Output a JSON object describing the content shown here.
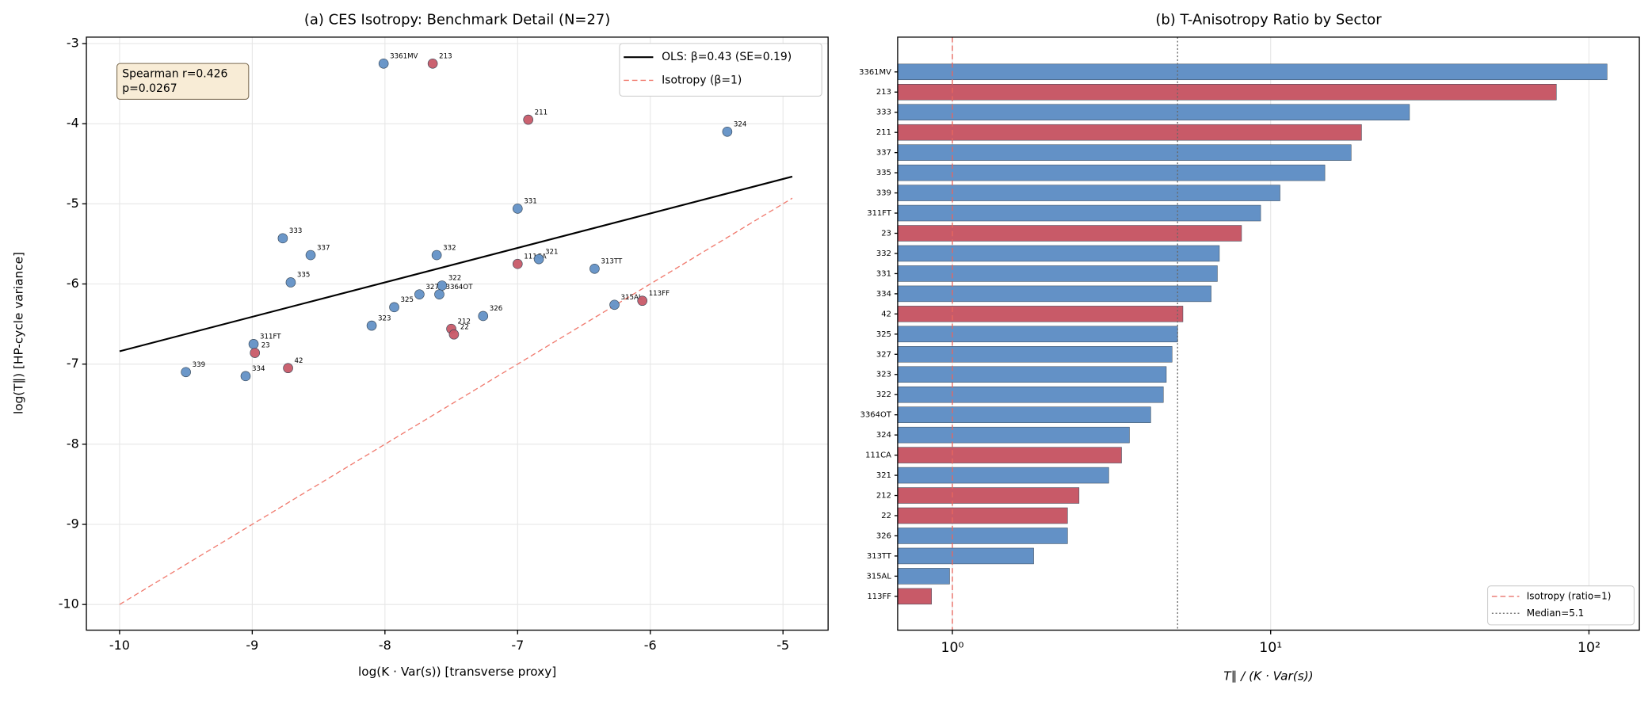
{
  "chart_data": [
    {
      "type": "scatter",
      "title": "(a) CES Isotropy: Benchmark Detail (N=27)",
      "x_label": "log(K · Var(s))  [transverse proxy]",
      "y_label": "log(T∥)  [HP-cycle variance]",
      "labels": [
        "3361MV",
        "213",
        "211",
        "324",
        "331",
        "333",
        "337",
        "332",
        "111CA",
        "321",
        "313TT",
        "335",
        "322",
        "327",
        "3364OT",
        "325",
        "315AL",
        "113FF",
        "326",
        "323",
        "212",
        "22",
        "311FT",
        "23",
        "42",
        "339",
        "334"
      ],
      "x": [
        -8.01,
        -7.64,
        -6.92,
        -5.42,
        -7.0,
        -8.77,
        -8.56,
        -7.61,
        -7.0,
        -6.84,
        -6.42,
        -8.71,
        -7.57,
        -7.74,
        -7.59,
        -7.93,
        -6.27,
        -6.06,
        -7.26,
        -8.1,
        -7.5,
        -7.48,
        -8.99,
        -8.98,
        -8.73,
        -9.5,
        -9.05
      ],
      "values": [
        -3.25,
        -3.25,
        -3.95,
        -4.1,
        -5.06,
        -5.43,
        -5.64,
        -5.64,
        -5.75,
        -5.69,
        -5.81,
        -5.98,
        -6.02,
        -6.13,
        -6.13,
        -6.29,
        -6.26,
        -6.21,
        -6.4,
        -6.52,
        -6.56,
        -6.63,
        -6.75,
        -6.86,
        -7.05,
        -7.1,
        -7.15
      ],
      "colors": [
        "#6391c6",
        "#c85a68",
        "#c85a68",
        "#6391c6",
        "#6391c6",
        "#6391c6",
        "#6391c6",
        "#6391c6",
        "#c85a68",
        "#6391c6",
        "#6391c6",
        "#6391c6",
        "#6391c6",
        "#6391c6",
        "#6391c6",
        "#6391c6",
        "#6391c6",
        "#c85a68",
        "#6391c6",
        "#6391c6",
        "#c85a68",
        "#c85a68",
        "#6391c6",
        "#c85a68",
        "#c85a68",
        "#6391c6",
        "#6391c6"
      ],
      "lines": [
        {
          "name": "OLS: β=0.43 (SE=0.19)",
          "color": "#000000",
          "style": "solid",
          "x": [
            -10,
            -4.93
          ],
          "values": [
            -6.84,
            -4.66
          ]
        },
        {
          "name": "Isotropy (β=1)",
          "color": "#f07a6e",
          "style": "dashed",
          "x": [
            -10,
            -4.93
          ],
          "values": [
            -10,
            -4.93
          ]
        }
      ],
      "annotation": [
        "Spearman r=0.426",
        "p=0.0267"
      ],
      "xlim": [
        -10.25,
        -4.66
      ],
      "ylim": [
        -10.32,
        -2.92
      ],
      "xticks": [
        -10,
        -9,
        -8,
        -7,
        -6,
        -5
      ],
      "yticks": [
        -10,
        -9,
        -8,
        -7,
        -6,
        -5,
        -4,
        -3
      ],
      "grid": true,
      "legend": "upper right"
    },
    {
      "type": "barh",
      "title": "(b) T-Anisotropy Ratio by Sector",
      "x_label": "T∥ / (K · Var(s))",
      "categories": [
        "3361MV",
        "213",
        "333",
        "211",
        "337",
        "335",
        "339",
        "311FT",
        "23",
        "332",
        "331",
        "334",
        "42",
        "325",
        "327",
        "323",
        "322",
        "3364OT",
        "324",
        "111CA",
        "321",
        "212",
        "22",
        "326",
        "313TT",
        "315AL",
        "113FF"
      ],
      "values": [
        114,
        79,
        27.3,
        19.3,
        17.9,
        14.8,
        10.7,
        9.3,
        8.1,
        6.9,
        6.8,
        6.5,
        5.3,
        5.1,
        4.9,
        4.7,
        4.6,
        4.2,
        3.6,
        3.4,
        3.1,
        2.5,
        2.3,
        2.3,
        1.8,
        0.98,
        0.86
      ],
      "colors": [
        "#6391c6",
        "#c85a68",
        "#6391c6",
        "#c85a68",
        "#6391c6",
        "#6391c6",
        "#6391c6",
        "#6391c6",
        "#c85a68",
        "#6391c6",
        "#6391c6",
        "#6391c6",
        "#c85a68",
        "#6391c6",
        "#6391c6",
        "#6391c6",
        "#6391c6",
        "#6391c6",
        "#6391c6",
        "#c85a68",
        "#6391c6",
        "#c85a68",
        "#c85a68",
        "#6391c6",
        "#6391c6",
        "#6391c6",
        "#c85a68"
      ],
      "reference_lines": [
        {
          "name": "Isotropy (ratio=1)",
          "value": 1,
          "color": "#e8665e",
          "style": "dashed"
        },
        {
          "name": "Median=5.1",
          "value": 5.1,
          "color": "#666666",
          "style": "dotted"
        }
      ],
      "xlim": [
        0.673,
        144
      ],
      "log_x": true,
      "xticks": [
        {
          "value": 1,
          "label": "10⁰"
        },
        {
          "value": 10,
          "label": "10¹"
        },
        {
          "value": 100,
          "label": "10²"
        }
      ],
      "grid": true,
      "legend": "lower right"
    }
  ]
}
